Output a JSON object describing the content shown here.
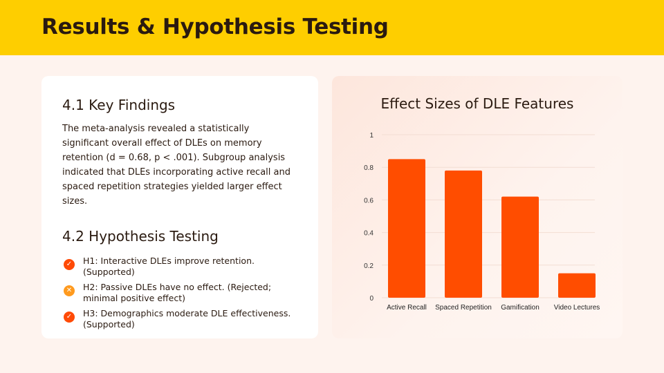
{
  "header": {
    "title": "Results & Hypothesis Testing"
  },
  "findings": {
    "title": "4.1 Key Findings",
    "text": "The meta-analysis revealed a statistically significant overall effect of DLEs on memory retention (d = 0.68, p < .001). Subgroup analysis indicated that DLEs incorporating active recall and spaced repetition strategies yielded larger effect sizes."
  },
  "hypotheses": {
    "title": "4.2 Hypothesis Testing",
    "items": [
      {
        "text": "H1: Interactive DLEs improve retention. (Supported)",
        "status": "supported",
        "icon": "check-icon",
        "color": "#FF4A06"
      },
      {
        "text": "H2: Passive DLEs have no effect. (Rejected; minimal positive effect)",
        "status": "rejected",
        "icon": "x-icon",
        "color": "#FF9A1E"
      },
      {
        "text": "H3: Demographics moderate DLE effectiveness. (Supported)",
        "status": "supported",
        "icon": "check-icon",
        "color": "#FF4A06"
      }
    ]
  },
  "colors": {
    "accent": "#FECE00",
    "bar": "#FF4D00"
  },
  "chart_data": {
    "type": "bar",
    "title": "Effect Sizes of DLE Features",
    "categories": [
      "Active Recall",
      "Spaced Repetition",
      "Gamification",
      "Video Lectures"
    ],
    "values": [
      0.85,
      0.78,
      0.62,
      0.15
    ],
    "ylim": [
      0,
      1
    ],
    "yticks": [
      "0",
      "0.2",
      "0.4",
      "0.6",
      "0.8",
      "1"
    ],
    "xlabel": "",
    "ylabel": ""
  }
}
